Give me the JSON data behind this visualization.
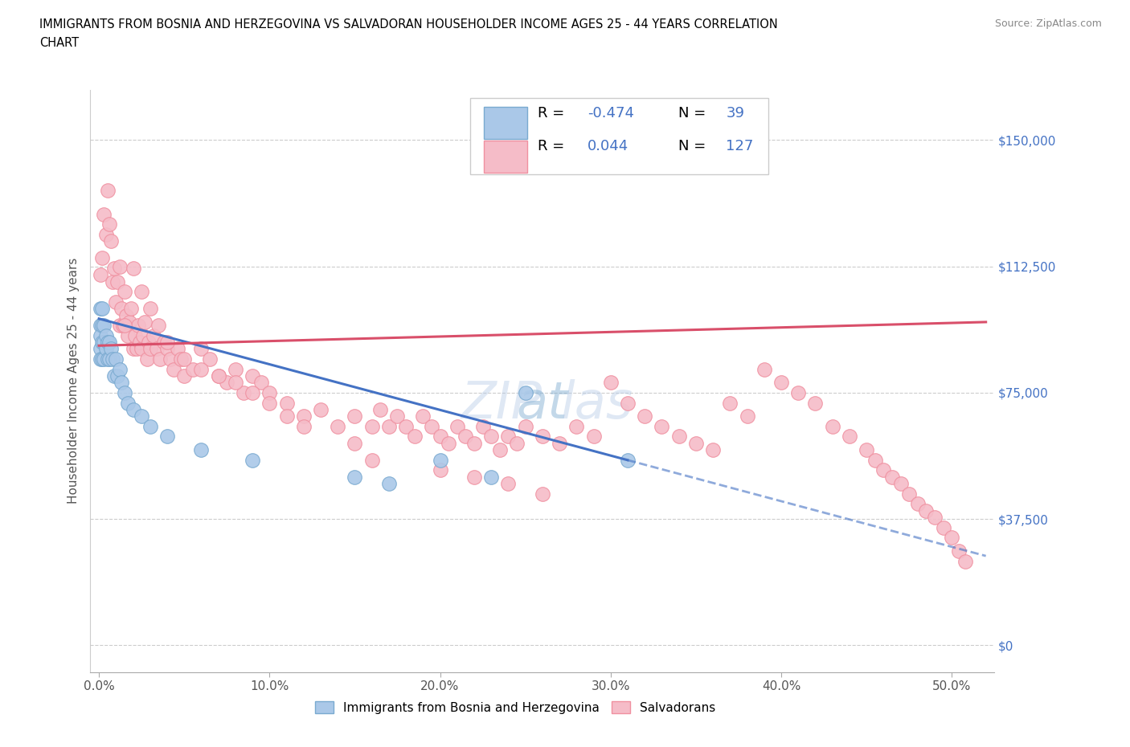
{
  "title_line1": "IMMIGRANTS FROM BOSNIA AND HERZEGOVINA VS SALVADORAN HOUSEHOLDER INCOME AGES 25 - 44 YEARS CORRELATION",
  "title_line2": "CHART",
  "source": "Source: ZipAtlas.com",
  "ylabel": "Householder Income Ages 25 - 44 years",
  "xlim": [
    -0.005,
    0.525
  ],
  "ylim": [
    -8000,
    165000
  ],
  "bosnia_color": "#aac8e8",
  "bosnia_edge": "#7aaad0",
  "salvador_color": "#f5bcc8",
  "salvador_edge": "#f090a0",
  "bosnia_line_color": "#4472c4",
  "salvador_line_color": "#d94f6a",
  "ytick_labels": [
    "$0",
    "$37,500",
    "$75,000",
    "$112,500",
    "$150,000"
  ],
  "ytick_values": [
    0,
    37500,
    75000,
    112500,
    150000
  ],
  "xtick_values": [
    0.0,
    0.1,
    0.2,
    0.3,
    0.4,
    0.5
  ],
  "xtick_labels": [
    "0.0%",
    "10.0%",
    "20.0%",
    "30.0%",
    "40.0%",
    "50.0%"
  ],
  "bosnia_R": -0.474,
  "bosnia_N": 39,
  "salvador_R": 0.044,
  "salvador_N": 127,
  "bosnia_line_x0": 0.0,
  "bosnia_line_y0": 97000,
  "bosnia_line_x1": 0.31,
  "bosnia_line_y1": 55000,
  "bosnia_line_solid_end": 0.31,
  "bosnia_line_dash_end": 0.52,
  "salvador_line_x0": 0.0,
  "salvador_line_y0": 89000,
  "salvador_line_x1": 0.52,
  "salvador_line_y1": 96000,
  "bosnia_x": [
    0.001,
    0.001,
    0.001,
    0.001,
    0.001,
    0.002,
    0.002,
    0.002,
    0.002,
    0.003,
    0.003,
    0.003,
    0.004,
    0.004,
    0.005,
    0.005,
    0.006,
    0.006,
    0.007,
    0.008,
    0.009,
    0.01,
    0.011,
    0.012,
    0.013,
    0.015,
    0.017,
    0.02,
    0.025,
    0.03,
    0.04,
    0.06,
    0.09,
    0.15,
    0.17,
    0.2,
    0.23,
    0.25,
    0.31
  ],
  "bosnia_y": [
    100000,
    95000,
    92000,
    88000,
    85000,
    100000,
    95000,
    90000,
    85000,
    95000,
    90000,
    85000,
    92000,
    88000,
    90000,
    85000,
    90000,
    85000,
    88000,
    85000,
    80000,
    85000,
    80000,
    82000,
    78000,
    75000,
    72000,
    70000,
    68000,
    65000,
    62000,
    58000,
    55000,
    50000,
    48000,
    55000,
    50000,
    75000,
    55000
  ],
  "salvador_x": [
    0.001,
    0.002,
    0.003,
    0.004,
    0.005,
    0.006,
    0.007,
    0.008,
    0.009,
    0.01,
    0.011,
    0.012,
    0.013,
    0.014,
    0.015,
    0.016,
    0.017,
    0.018,
    0.019,
    0.02,
    0.021,
    0.022,
    0.023,
    0.024,
    0.025,
    0.026,
    0.027,
    0.028,
    0.029,
    0.03,
    0.032,
    0.034,
    0.036,
    0.038,
    0.04,
    0.042,
    0.044,
    0.046,
    0.048,
    0.05,
    0.055,
    0.06,
    0.065,
    0.07,
    0.075,
    0.08,
    0.085,
    0.09,
    0.095,
    0.1,
    0.11,
    0.12,
    0.13,
    0.14,
    0.15,
    0.16,
    0.165,
    0.17,
    0.175,
    0.18,
    0.185,
    0.19,
    0.195,
    0.2,
    0.205,
    0.21,
    0.215,
    0.22,
    0.225,
    0.23,
    0.235,
    0.24,
    0.245,
    0.25,
    0.26,
    0.27,
    0.28,
    0.29,
    0.3,
    0.31,
    0.32,
    0.33,
    0.34,
    0.35,
    0.36,
    0.37,
    0.38,
    0.39,
    0.4,
    0.41,
    0.42,
    0.43,
    0.44,
    0.45,
    0.455,
    0.46,
    0.465,
    0.47,
    0.475,
    0.48,
    0.485,
    0.49,
    0.495,
    0.5,
    0.504,
    0.508,
    0.012,
    0.015,
    0.02,
    0.025,
    0.03,
    0.035,
    0.04,
    0.05,
    0.06,
    0.07,
    0.08,
    0.09,
    0.1,
    0.11,
    0.12,
    0.15,
    0.16,
    0.2,
    0.22,
    0.24,
    0.26
  ],
  "salvador_y": [
    110000,
    115000,
    128000,
    122000,
    135000,
    125000,
    120000,
    108000,
    112000,
    102000,
    108000,
    95000,
    100000,
    95000,
    105000,
    98000,
    92000,
    96000,
    100000,
    88000,
    92000,
    88000,
    95000,
    90000,
    88000,
    92000,
    96000,
    85000,
    90000,
    88000,
    92000,
    88000,
    85000,
    90000,
    88000,
    85000,
    82000,
    88000,
    85000,
    80000,
    82000,
    88000,
    85000,
    80000,
    78000,
    82000,
    75000,
    80000,
    78000,
    75000,
    72000,
    68000,
    70000,
    65000,
    68000,
    65000,
    70000,
    65000,
    68000,
    65000,
    62000,
    68000,
    65000,
    62000,
    60000,
    65000,
    62000,
    60000,
    65000,
    62000,
    58000,
    62000,
    60000,
    65000,
    62000,
    60000,
    65000,
    62000,
    78000,
    72000,
    68000,
    65000,
    62000,
    60000,
    58000,
    72000,
    68000,
    82000,
    78000,
    75000,
    72000,
    65000,
    62000,
    58000,
    55000,
    52000,
    50000,
    48000,
    45000,
    42000,
    40000,
    38000,
    35000,
    32000,
    28000,
    25000,
    112500,
    95000,
    112000,
    105000,
    100000,
    95000,
    90000,
    85000,
    82000,
    80000,
    78000,
    75000,
    72000,
    68000,
    65000,
    60000,
    55000,
    52000,
    50000,
    48000,
    45000
  ]
}
